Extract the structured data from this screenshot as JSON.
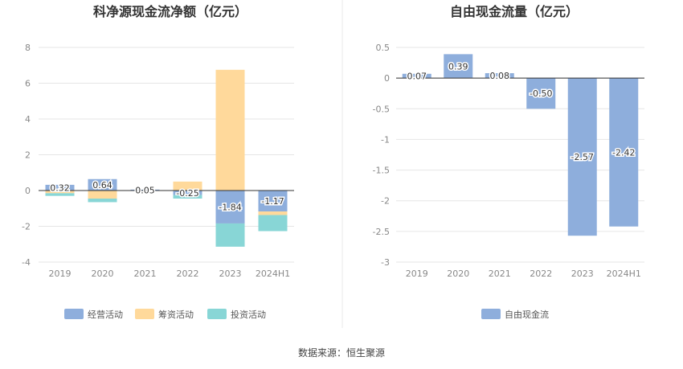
{
  "source_text": "数据来源：恒生聚源",
  "colors": {
    "operating": "#8eaedc",
    "financing": "#ffd99b",
    "investing": "#88d6d6",
    "free_cash_flow": "#8eaedc",
    "grid": "#e6e6e6",
    "axis": "#333333",
    "divider": "#e8e8e8"
  },
  "chart_data": [
    {
      "type": "bar",
      "stacked": true,
      "title": "科净源现金流净额（亿元）",
      "categories": [
        "2019",
        "2020",
        "2021",
        "2022",
        "2023",
        "2024H1"
      ],
      "series": [
        {
          "name": "经营活动",
          "values": [
            0.32,
            0.64,
            0.05,
            -0.25,
            -1.84,
            -1.17
          ]
        },
        {
          "name": "筹资活动",
          "values": [
            -0.15,
            -0.45,
            0.0,
            0.5,
            6.75,
            -0.2
          ]
        },
        {
          "name": "投资活动",
          "values": [
            -0.15,
            -0.2,
            0.0,
            -0.2,
            -1.3,
            -0.9
          ]
        }
      ],
      "data_labels": [
        "0.32",
        "0.64",
        "0.05",
        "-0.25",
        "-1.84",
        "-1.17"
      ],
      "yticks": [
        "8",
        "6",
        "4",
        "2",
        "0",
        "-2",
        "-4"
      ],
      "ylim": [
        -4,
        8
      ],
      "legend": "bottom",
      "grid": true
    },
    {
      "type": "bar",
      "title": "自由现金流量（亿元）",
      "categories": [
        "2019",
        "2020",
        "2021",
        "2022",
        "2023",
        "2024H1"
      ],
      "series": [
        {
          "name": "自由现金流",
          "values": [
            0.07,
            0.39,
            0.08,
            -0.5,
            -2.57,
            -2.42
          ]
        }
      ],
      "data_labels": [
        "0.07",
        "0.39",
        "0.08",
        "-0.50",
        "-2.57",
        "-2.42"
      ],
      "yticks": [
        "0.5",
        "0",
        "-0.5",
        "-1",
        "-1.5",
        "-2",
        "-2.5",
        "-3"
      ],
      "ylim": [
        -3,
        0.5
      ],
      "legend": "bottom",
      "grid": true
    }
  ]
}
